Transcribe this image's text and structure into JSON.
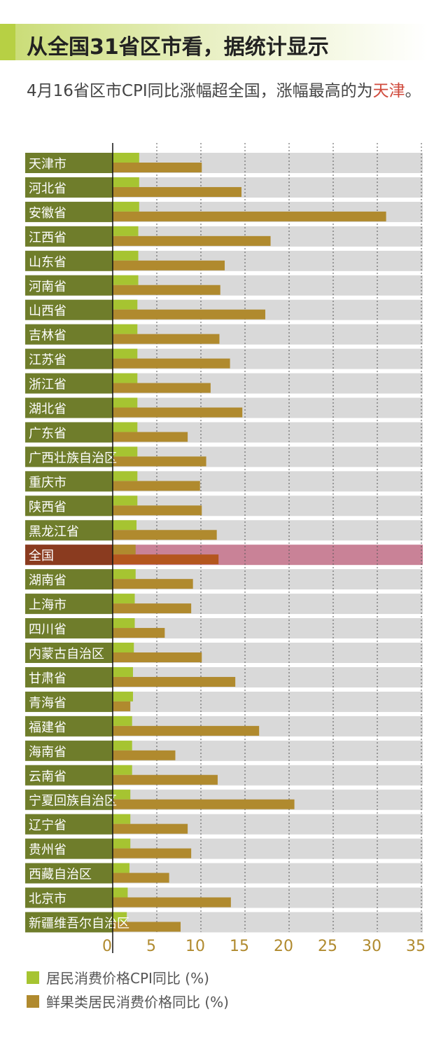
{
  "title": "从全国31省区市看，据统计显示",
  "subtitle_pre": "4月16省区市CPI同比涨幅超全国，涨幅最高的为",
  "subtitle_highlight": "天津",
  "subtitle_post": "。",
  "colors": {
    "cpi": "#a6c431",
    "fresh": "#b08a2e",
    "label_bg": "#6f7d2b",
    "row_bg": "#d9d9d9",
    "highlight_bg": "#c98297",
    "highlight_label": "#8a3b1f",
    "highlight_fresh": "#b4561e",
    "tick_text": "#b08a2e"
  },
  "legend": [
    {
      "label": "居民消费价格CPI同比 (%)",
      "color": "#a6c431"
    },
    {
      "label": "鲜果类居民消费价格同比 (%)",
      "color": "#b08a2e"
    }
  ],
  "chart_data": {
    "type": "bar",
    "orientation": "horizontal",
    "highlight_category": "全国",
    "categories": [
      "天津市",
      "河北省",
      "安徽省",
      "江西省",
      "山东省",
      "河南省",
      "山西省",
      "吉林省",
      "江苏省",
      "浙江省",
      "湖北省",
      "广东省",
      "广西壮族自治区",
      "重庆市",
      "陕西省",
      "黑龙江省",
      "全国",
      "湖南省",
      "上海市",
      "四川省",
      "内蒙古自治区",
      "甘肃省",
      "青海省",
      "福建省",
      "海南省",
      "云南省",
      "宁夏回族自治区",
      "辽宁省",
      "贵州省",
      "西藏自治区",
      "北京市",
      "新疆维吾尔自治区"
    ],
    "series": [
      {
        "name": "居民消费价格CPI同比 (%)",
        "values": [
          3.0,
          3.0,
          3.0,
          2.9,
          2.9,
          2.9,
          2.8,
          2.8,
          2.8,
          2.8,
          2.8,
          2.8,
          2.8,
          2.8,
          2.8,
          2.7,
          2.6,
          2.6,
          2.5,
          2.5,
          2.4,
          2.3,
          2.3,
          2.2,
          2.2,
          2.2,
          2.0,
          2.0,
          2.0,
          1.9,
          1.7,
          1.6
        ]
      },
      {
        "name": "鲜果类居民消费价格同比 (%)",
        "values": [
          10.1,
          14.6,
          31.0,
          17.9,
          12.7,
          12.2,
          17.3,
          12.1,
          13.3,
          11.1,
          14.7,
          8.5,
          10.6,
          9.9,
          10.1,
          11.8,
          12.0,
          9.1,
          8.9,
          5.9,
          10.1,
          13.9,
          2.0,
          16.6,
          7.1,
          11.9,
          20.6,
          8.5,
          8.9,
          6.4,
          13.4,
          7.7
        ]
      }
    ],
    "xlim": [
      0,
      35
    ],
    "xticks": [
      "0",
      "5",
      "10",
      "15",
      "20",
      "25",
      "30",
      "35"
    ],
    "grid": "vertical dashed"
  }
}
